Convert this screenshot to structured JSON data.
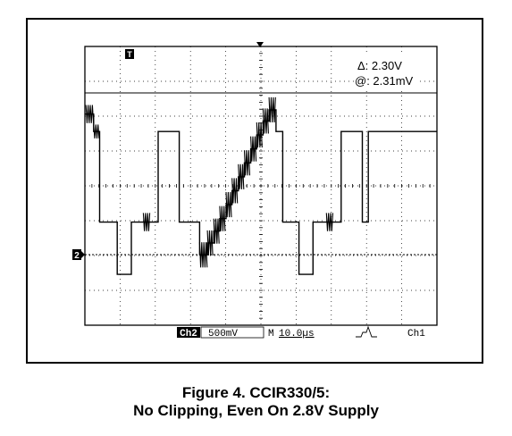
{
  "caption": {
    "line1": "Figure 4. CCIR330/5:",
    "line2": "No Clipping, Even On 2.8V Supply"
  },
  "readouts": {
    "delta": "Δ: 2.30V",
    "at": "@: 2.31mV",
    "trigger_marker": "T",
    "ch_marker": "2"
  },
  "status_bar": {
    "channel": "Ch2",
    "volts_div": "500mV",
    "mode": "M",
    "time_div": "10.0µs",
    "trigger_source": "Ch1"
  },
  "chart_data": {
    "type": "line",
    "title": "",
    "xlabel": "",
    "ylabel": "",
    "x_unit": "µs",
    "y_unit": "V",
    "xlim": [
      0,
      100
    ],
    "ylim": [
      -0.73,
      3.27
    ],
    "grid": true,
    "divisions": {
      "x": 10,
      "y": 8
    },
    "series": [
      {
        "description": "CCIR330/5 staircase video waveform, Ch2",
        "points": [
          [
            0,
            2.3
          ],
          [
            2.5,
            2.3
          ],
          [
            2.5,
            2.05
          ],
          [
            4.2,
            2.05
          ],
          [
            4.2,
            0.75
          ],
          [
            9.2,
            0.75
          ],
          [
            9.2,
            0.0
          ],
          [
            13.2,
            0.0
          ],
          [
            13.2,
            0.75
          ],
          [
            20.8,
            0.75
          ],
          [
            20.8,
            2.05
          ],
          [
            26.8,
            2.05
          ],
          [
            26.8,
            0.75
          ],
          [
            32.6,
            0.75
          ],
          [
            32.6,
            0.28
          ],
          [
            34.8,
            0.28
          ],
          [
            34.8,
            0.45
          ],
          [
            36.6,
            0.45
          ],
          [
            36.6,
            0.62
          ],
          [
            38.3,
            0.62
          ],
          [
            38.3,
            0.8
          ],
          [
            40.1,
            0.8
          ],
          [
            40.1,
            1.0
          ],
          [
            41.8,
            1.0
          ],
          [
            41.8,
            1.2
          ],
          [
            43.6,
            1.2
          ],
          [
            43.6,
            1.4
          ],
          [
            45.3,
            1.4
          ],
          [
            45.3,
            1.6
          ],
          [
            47.1,
            1.6
          ],
          [
            47.1,
            1.8
          ],
          [
            48.8,
            1.8
          ],
          [
            48.8,
            2.0
          ],
          [
            50.6,
            2.0
          ],
          [
            50.6,
            2.2
          ],
          [
            52.3,
            2.2
          ],
          [
            52.3,
            2.36
          ],
          [
            54.3,
            2.36
          ],
          [
            54.3,
            2.05
          ],
          [
            56.2,
            2.05
          ],
          [
            56.2,
            0.75
          ],
          [
            60.8,
            0.75
          ],
          [
            60.8,
            0.0
          ],
          [
            64.8,
            0.0
          ],
          [
            64.8,
            0.75
          ],
          [
            72.8,
            0.75
          ],
          [
            72.8,
            2.05
          ],
          [
            78.8,
            2.05
          ],
          [
            78.8,
            0.75
          ],
          [
            80.5,
            0.75
          ],
          [
            80.5,
            2.05
          ],
          [
            100,
            2.05
          ]
        ]
      }
    ]
  }
}
